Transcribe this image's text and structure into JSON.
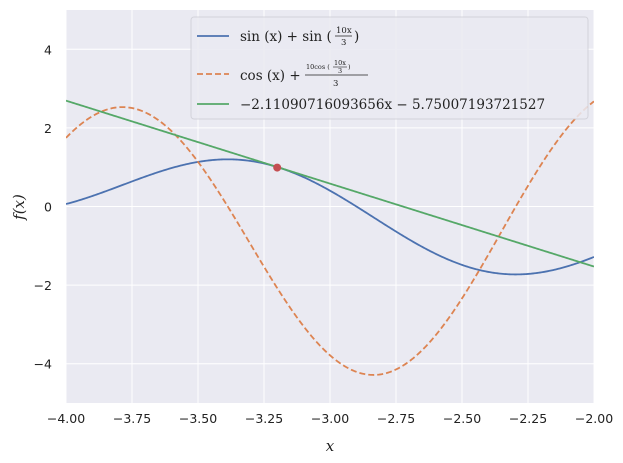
{
  "chart_data": {
    "type": "line",
    "xlabel": "x",
    "ylabel": "f(x)",
    "xlim": [
      -4.0,
      -2.0
    ],
    "ylim": [
      -5.0,
      5.0
    ],
    "x_ticks": [
      -4.0,
      -3.75,
      -3.5,
      -3.25,
      -3.0,
      -2.75,
      -2.5,
      -2.25,
      -2.0
    ],
    "x_tick_labels": [
      "−4.00",
      "−3.75",
      "−3.50",
      "−3.25",
      "−3.00",
      "−2.75",
      "−2.50",
      "−2.25",
      "−2.00"
    ],
    "y_ticks": [
      -4,
      -2,
      0,
      2,
      4
    ],
    "y_tick_labels": [
      "−4",
      "−2",
      "0",
      "2",
      "4"
    ],
    "grid": true,
    "legend_location": "top-right",
    "series": [
      {
        "name": "sin(x) + sin(10x/3)",
        "function": "sin(x) + sin(10*x/3)",
        "color": "#4c72b0",
        "style": "solid"
      },
      {
        "name": "cos(x) + 10cos(10x/3)/3",
        "function": "cos(x) + 10*cos(10*x/3)/3",
        "color": "#dd8452",
        "style": "dashed"
      },
      {
        "name": "−2.11090716093656x − 5.75007193721527",
        "slope": -2.11090716093656,
        "intercept": -5.75007193721527,
        "color": "#55a868",
        "style": "solid"
      }
    ],
    "points": [
      {
        "x": -3.2,
        "y": 0.99,
        "color": "#c44e52"
      }
    ],
    "background": "#eaeaf2",
    "grid_color": "#ffffff"
  },
  "legend": {
    "line3_label": "−2.11090716093656x − 5.75007193721527"
  }
}
